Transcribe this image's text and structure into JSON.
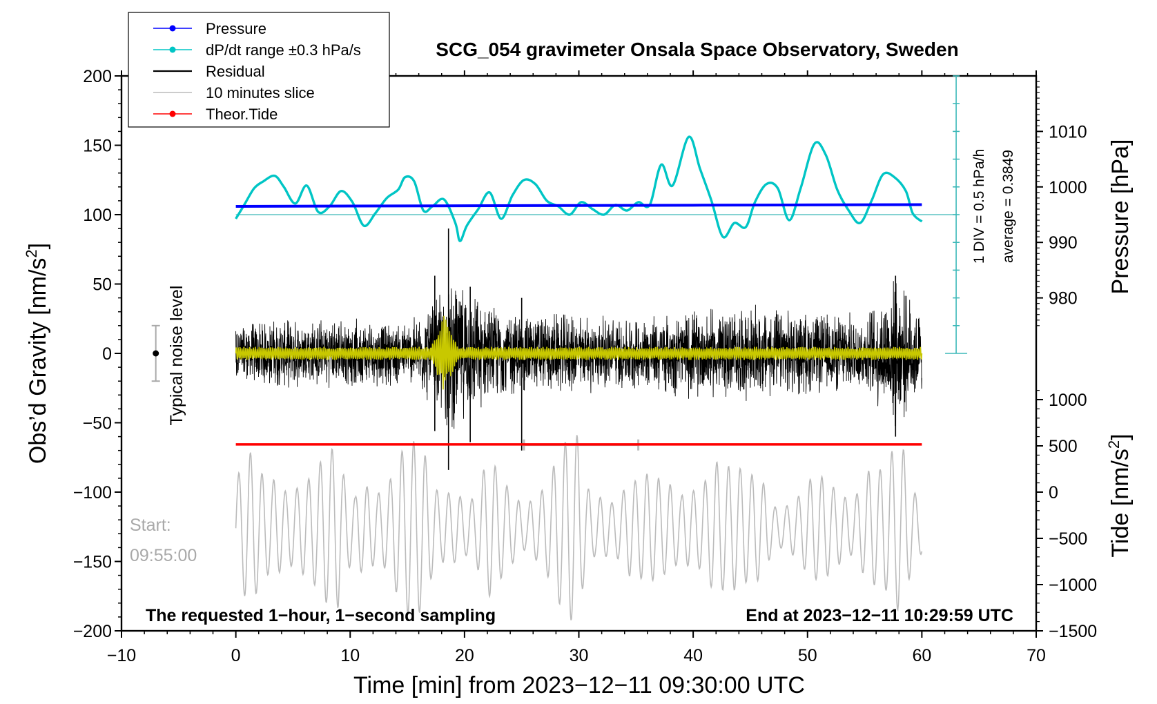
{
  "chart_data": {
    "type": "line",
    "title": "SCG_054 gravimeter Onsala Space Observatory, Sweden",
    "xlabel": "Time [min] from 2023−12−11 09:30:00 UTC",
    "ylabel_left": "Obs’d Gravity [nm/s²]",
    "ylabel_left_main": "Obs’d Gravity [nm/s",
    "ylabel_left_sup": "2",
    "ylabel_left_end": "]",
    "ylabel_right_pressure": "Pressure [hPa]",
    "ylabel_right_tide_main": "Tide [nm/s",
    "ylabel_right_tide_sup": "2",
    "ylabel_right_tide_end": "]",
    "xlim": [
      -10,
      70
    ],
    "ylim": [
      -200,
      200
    ],
    "x_ticks": [
      "−10",
      "0",
      "10",
      "20",
      "30",
      "40",
      "50",
      "60",
      "70"
    ],
    "x_tick_values": [
      -10,
      0,
      10,
      20,
      30,
      40,
      50,
      60,
      70
    ],
    "y_ticks": [
      "200",
      "150",
      "100",
      "50",
      "0",
      "−50",
      "−100",
      "−150",
      "−200"
    ],
    "y_tick_values": [
      200,
      150,
      100,
      50,
      0,
      -50,
      -100,
      -150,
      -200
    ],
    "pressure_axis": {
      "ticks": [
        "1010",
        "1000",
        "990",
        "980"
      ],
      "tick_values": [
        1010,
        1000,
        990,
        980
      ],
      "gravity_at_1000": 120,
      "units_per_hpa": 4
    },
    "tide_axis": {
      "ticks": [
        "1000",
        "500",
        "0",
        "−500",
        "−1000",
        "−1500"
      ],
      "tick_values": [
        1000,
        500,
        0,
        -500,
        -1000,
        -1500
      ],
      "gravity_at_0": -100,
      "units_per_nms2": 0.06667
    },
    "legend": [
      {
        "label": "Pressure",
        "color": "#0000ff",
        "marker": true
      },
      {
        "label": "dP/dt range ±0.3 hPa/s",
        "color": "#00c5c5",
        "marker": true
      },
      {
        "label": "Residual",
        "color": "#000000",
        "marker": false
      },
      {
        "label": "10 minutes slice",
        "color": "#bbbbbb",
        "marker": false
      },
      {
        "label": "Theor.Tide",
        "color": "#ff0000",
        "marker": true
      }
    ],
    "series": [
      {
        "name": "Pressure",
        "color": "#0000ff",
        "x": [
          0,
          10,
          20,
          30,
          40,
          50,
          60
        ],
        "values": [
          106,
          106.2,
          106.4,
          106.6,
          106.8,
          107,
          107.2
        ]
      },
      {
        "name": "dP/dt range ±0.3 hPa/s",
        "color": "#00c5c5",
        "x": [
          0,
          0.8,
          1.6,
          2.4,
          3.4,
          4.2,
          5.2,
          6.2,
          7.2,
          8.2,
          9.2,
          10.2,
          11.2,
          12.2,
          13.2,
          14.2,
          14.8,
          15.6,
          16.4,
          17.2,
          18.2,
          19.2,
          19.6,
          20.2,
          21.2,
          22.2,
          23.2,
          24.2,
          25.2,
          26.2,
          27.2,
          28.2,
          29.2,
          30.2,
          31.2,
          32.2,
          33.2,
          34.2,
          35.2,
          36.2,
          37.2,
          38.2,
          39.6,
          40.6,
          41.6,
          42.6,
          43.6,
          44.6,
          45.4,
          46.4,
          47.4,
          48.4,
          49.4,
          50.6,
          51.6,
          52.6,
          53.6,
          54.6,
          55.6,
          56.6,
          57.6,
          58.6,
          59.2,
          60
        ],
        "values": [
          97,
          108,
          119,
          124,
          128,
          120,
          108,
          121,
          102,
          106,
          117,
          109,
          92,
          101,
          112,
          118,
          127,
          124,
          103,
          106,
          111,
          94,
          81,
          92,
          104,
          116,
          97,
          114,
          125,
          122,
          110,
          106,
          100,
          109,
          104,
          100,
          107,
          103,
          109,
          107,
          136,
          121,
          156,
          133,
          110,
          84,
          94,
          91,
          109,
          122,
          119,
          96,
          119,
          151,
          143,
          118,
          103,
          94,
          110,
          129,
          127,
          117,
          101,
          95
        ]
      },
      {
        "name": "Residual",
        "color": "#000000",
        "envelope_x": [
          0,
          5,
          10,
          15,
          17,
          18,
          19,
          20,
          22,
          25,
          30,
          35,
          40,
          45,
          50,
          55,
          57.7,
          60
        ],
        "envelope_amp": [
          24,
          26,
          26,
          24,
          38,
          52,
          62,
          50,
          38,
          32,
          30,
          28,
          34,
          36,
          32,
          30,
          58,
          32
        ],
        "spikes": [
          {
            "x": 18.6,
            "max": 90,
            "min": -84
          },
          {
            "x": 17.4,
            "max": 56,
            "min": -56
          },
          {
            "x": 20.5,
            "max": 48,
            "min": -64
          },
          {
            "x": 57.7,
            "max": 56,
            "min": -60
          },
          {
            "x": 25.0,
            "max": 40,
            "min": -70
          }
        ]
      },
      {
        "name": "Filtered residual",
        "color": "#c8c800",
        "burst_x": [
          17.0,
          19.5
        ],
        "burst_amp": 30,
        "base_amp": 5
      },
      {
        "name": "10 minutes slice",
        "color": "#bbbbbb",
        "slice_x": [
          25.2,
          35.2
        ],
        "slice_y": -66,
        "trace_center": -126,
        "trace_amp_range": [
          20,
          76
        ]
      },
      {
        "name": "Theor.Tide",
        "color": "#ff0000",
        "x": [
          0,
          60
        ],
        "values": [
          -65.6,
          -65.6
        ]
      }
    ],
    "noise_level": {
      "center": 0,
      "min": -20,
      "max": 20,
      "x": -7,
      "label": "Typical noise level"
    },
    "pressure_scale": {
      "x": 63,
      "label_div": "1 DIV = 0.5 hPa/h",
      "label_avg": "average = 0.3849",
      "reference_y": 100
    },
    "annotations": {
      "start_label": "Start:",
      "start_time": "09:55:00",
      "requested": "The requested 1−hour, 1−second sampling",
      "end_at": "End at 2023−12−11 10:29:59 UTC"
    }
  }
}
